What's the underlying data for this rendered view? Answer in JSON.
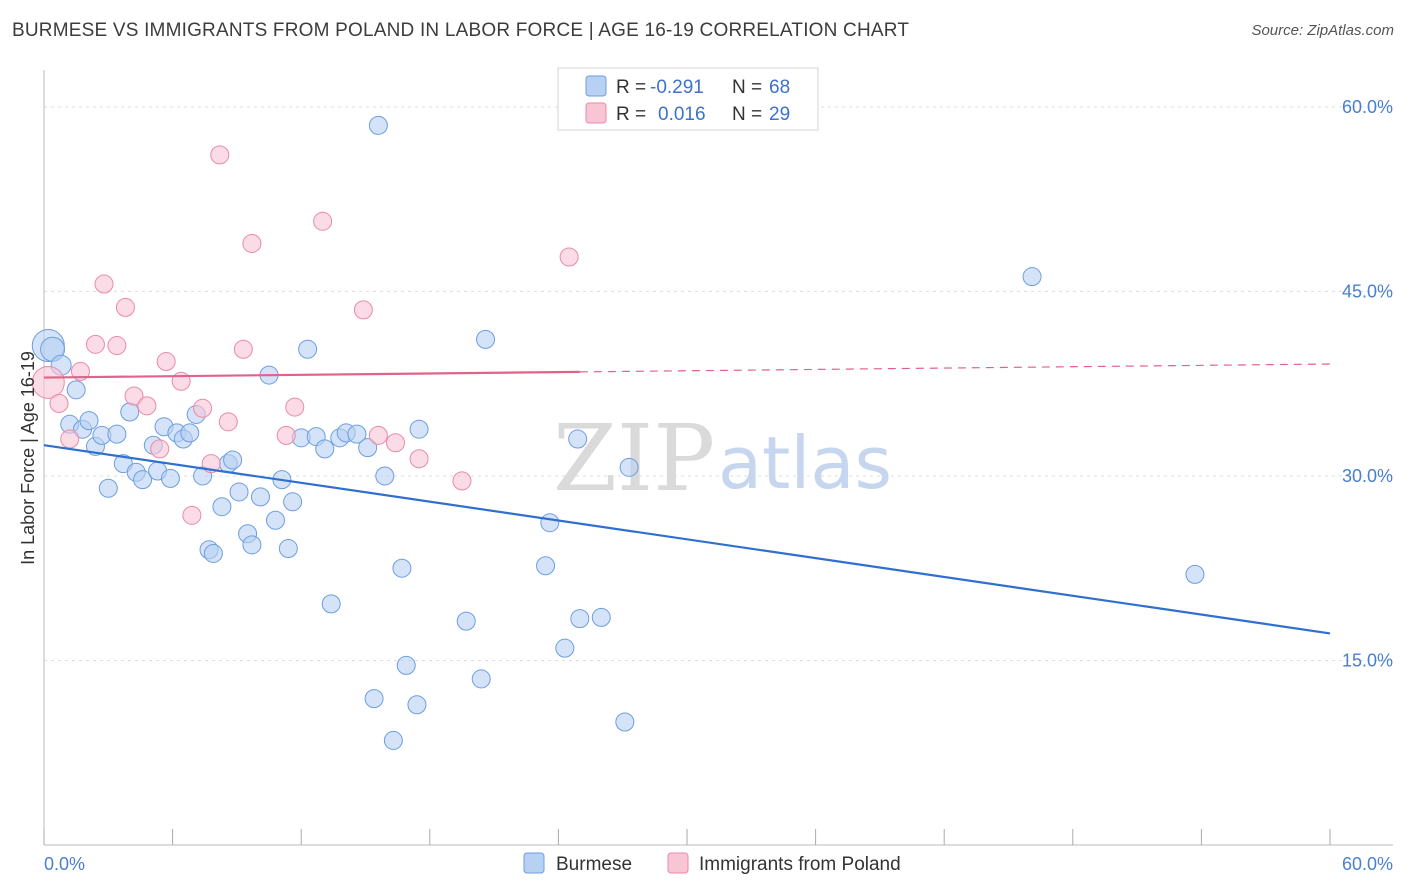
{
  "header": {
    "title": "BURMESE VS IMMIGRANTS FROM POLAND IN LABOR FORCE | AGE 16-19 CORRELATION CHART",
    "source": "Source: ZipAtlas.com"
  },
  "watermark": {
    "zip": "ZIP",
    "atlas": "atlas"
  },
  "legend": {
    "r_label": "R =",
    "n_label": "N =",
    "series": [
      {
        "name": "Burmese",
        "r": "-0.291",
        "n": "68",
        "fill": "#b8d0f2",
        "stroke": "#6d9ee0"
      },
      {
        "name": "Immigrants from Poland",
        "r": "0.016",
        "n": "29",
        "fill": "#f8c5d5",
        "stroke": "#ea8aa8"
      }
    ]
  },
  "colors": {
    "blue_line": "#2f6fcf",
    "pink_line": "#e0638a",
    "grid": "#dddddd",
    "tick_text": "#4a7fd0"
  },
  "chart_data": {
    "type": "scatter",
    "title": "BURMESE VS IMMIGRANTS FROM POLAND IN LABOR FORCE | AGE 16-19 CORRELATION CHART",
    "xlabel": "",
    "ylabel": "In Labor Force | Age 16-19",
    "xlim": [
      0,
      60
    ],
    "ylim": [
      0,
      63
    ],
    "x_tick_labels": [
      "0.0%",
      "60.0%"
    ],
    "y_ticks": [
      15,
      30,
      45,
      60
    ],
    "y_tick_labels": [
      "15.0%",
      "30.0%",
      "45.0%",
      "60.0%"
    ],
    "legend_position": "top-center",
    "series": [
      {
        "name": "Burmese",
        "points": [
          [
            0.2,
            40.6,
            16
          ],
          [
            0.4,
            40.3,
            12
          ],
          [
            0.8,
            39.0,
            10
          ],
          [
            1.5,
            37.0,
            9
          ],
          [
            1.2,
            34.2,
            9
          ],
          [
            1.8,
            33.8,
            9
          ],
          [
            2.1,
            34.5,
            9
          ],
          [
            2.4,
            32.4,
            9
          ],
          [
            2.7,
            33.3,
            9
          ],
          [
            3.4,
            33.4,
            9
          ],
          [
            3.0,
            29.0,
            9
          ],
          [
            3.7,
            31.0,
            9
          ],
          [
            4.0,
            35.2,
            9
          ],
          [
            4.3,
            30.3,
            9
          ],
          [
            4.6,
            29.7,
            9
          ],
          [
            5.1,
            32.5,
            9
          ],
          [
            5.3,
            30.4,
            9
          ],
          [
            5.6,
            34.0,
            9
          ],
          [
            5.9,
            29.8,
            9
          ],
          [
            6.2,
            33.5,
            9
          ],
          [
            6.5,
            33.0,
            9
          ],
          [
            6.8,
            33.5,
            9
          ],
          [
            7.1,
            35.0,
            9
          ],
          [
            7.4,
            30.0,
            9
          ],
          [
            7.7,
            24.0,
            9
          ],
          [
            7.9,
            23.7,
            9
          ],
          [
            8.3,
            27.5,
            9
          ],
          [
            8.6,
            31.0,
            9
          ],
          [
            8.8,
            31.3,
            9
          ],
          [
            9.1,
            28.7,
            9
          ],
          [
            9.5,
            25.3,
            9
          ],
          [
            9.7,
            24.4,
            9
          ],
          [
            10.1,
            28.3,
            9
          ],
          [
            10.5,
            38.2,
            9
          ],
          [
            10.8,
            26.4,
            9
          ],
          [
            11.1,
            29.7,
            9
          ],
          [
            11.4,
            24.1,
            9
          ],
          [
            11.6,
            27.9,
            9
          ],
          [
            12.0,
            33.1,
            9
          ],
          [
            12.3,
            40.3,
            9
          ],
          [
            12.7,
            33.2,
            9
          ],
          [
            13.1,
            32.2,
            9
          ],
          [
            13.4,
            19.6,
            9
          ],
          [
            13.8,
            33.1,
            9
          ],
          [
            14.1,
            33.5,
            9
          ],
          [
            14.6,
            33.4,
            9
          ],
          [
            15.1,
            32.3,
            9
          ],
          [
            15.4,
            11.9,
            9
          ],
          [
            15.6,
            58.5,
            9
          ],
          [
            15.9,
            30.0,
            9
          ],
          [
            16.3,
            8.5,
            9
          ],
          [
            16.7,
            22.5,
            9
          ],
          [
            16.9,
            14.6,
            9
          ],
          [
            17.4,
            11.4,
            9
          ],
          [
            17.5,
            33.8,
            9
          ],
          [
            19.7,
            18.2,
            9
          ],
          [
            20.4,
            13.5,
            9
          ],
          [
            20.6,
            41.1,
            9
          ],
          [
            23.4,
            22.7,
            9
          ],
          [
            23.6,
            26.2,
            9
          ],
          [
            24.3,
            16.0,
            9
          ],
          [
            24.9,
            33.0,
            9
          ],
          [
            25.0,
            18.4,
            9
          ],
          [
            26.0,
            18.5,
            9
          ],
          [
            27.1,
            10.0,
            9
          ],
          [
            27.3,
            30.7,
            9
          ],
          [
            46.1,
            46.2,
            9
          ],
          [
            53.7,
            22.0,
            9
          ]
        ]
      },
      {
        "name": "Immigrants from Poland",
        "points": [
          [
            0.2,
            37.6,
            16
          ],
          [
            0.7,
            35.9,
            9
          ],
          [
            1.2,
            33.0,
            9
          ],
          [
            1.7,
            38.5,
            9
          ],
          [
            2.4,
            40.7,
            9
          ],
          [
            2.8,
            45.6,
            9
          ],
          [
            3.4,
            40.6,
            9
          ],
          [
            3.8,
            43.7,
            9
          ],
          [
            4.2,
            36.5,
            9
          ],
          [
            4.8,
            35.7,
            9
          ],
          [
            5.4,
            32.2,
            9
          ],
          [
            5.7,
            39.3,
            9
          ],
          [
            6.4,
            37.7,
            9
          ],
          [
            6.9,
            26.8,
            9
          ],
          [
            7.4,
            35.5,
            9
          ],
          [
            7.8,
            31.0,
            9
          ],
          [
            8.2,
            56.1,
            9
          ],
          [
            8.6,
            34.4,
            9
          ],
          [
            9.3,
            40.3,
            9
          ],
          [
            9.7,
            48.9,
            9
          ],
          [
            11.3,
            33.3,
            9
          ],
          [
            11.7,
            35.6,
            9
          ],
          [
            13.0,
            50.7,
            9
          ],
          [
            14.9,
            43.5,
            9
          ],
          [
            15.6,
            33.3,
            9
          ],
          [
            16.4,
            32.7,
            9
          ],
          [
            17.5,
            31.4,
            9
          ],
          [
            19.5,
            29.6,
            9
          ],
          [
            24.5,
            47.8,
            9
          ]
        ]
      }
    ],
    "trend_lines": [
      {
        "series": "Burmese",
        "x": [
          0,
          60
        ],
        "y": [
          32.5,
          17.2
        ],
        "dashed_from_x": null
      },
      {
        "series": "Immigrants from Poland",
        "x": [
          0,
          60
        ],
        "y": [
          38.0,
          39.1
        ],
        "dashed_from_x": 25.0
      }
    ]
  }
}
